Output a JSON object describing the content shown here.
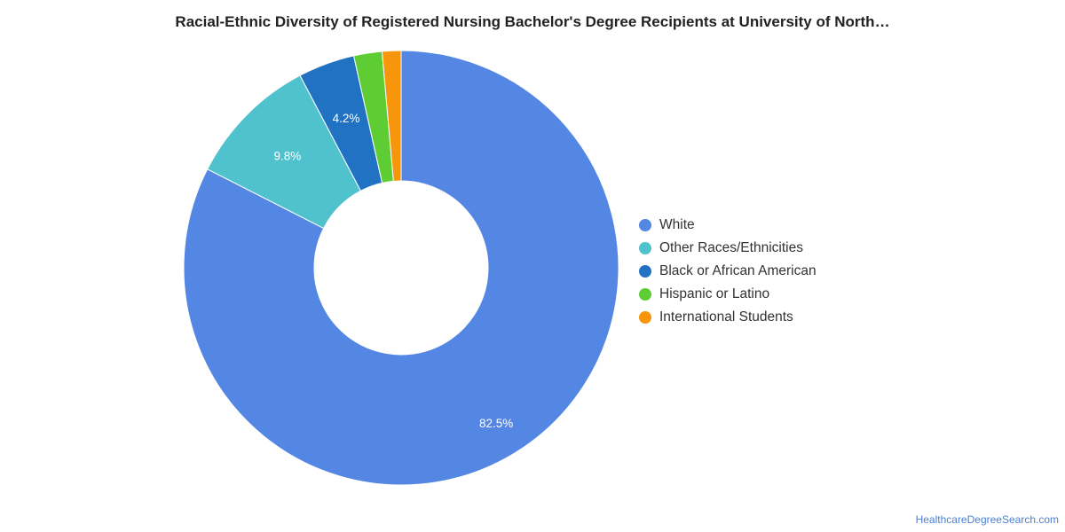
{
  "chart_data": {
    "type": "pie",
    "title": "Racial-Ethnic Diversity of Registered Nursing Bachelor's Degree Recipients at University of North…",
    "slices": [
      {
        "label": "White",
        "value": 82.5,
        "display": "82.5%",
        "color": "#5486e3"
      },
      {
        "label": "Other Races/Ethnicities",
        "value": 9.8,
        "display": "9.8%",
        "color": "#50c2ce"
      },
      {
        "label": "Black or African American",
        "value": 4.2,
        "display": "4.2%",
        "color": "#2272c3"
      },
      {
        "label": "Hispanic or Latino",
        "value": 2.1,
        "display": "",
        "color": "#5ecd34"
      },
      {
        "label": "International Students",
        "value": 1.4,
        "display": "",
        "color": "#f7950c"
      }
    ],
    "legend_position": "right",
    "donut": true
  },
  "source": "HealthcareDegreeSearch.com"
}
